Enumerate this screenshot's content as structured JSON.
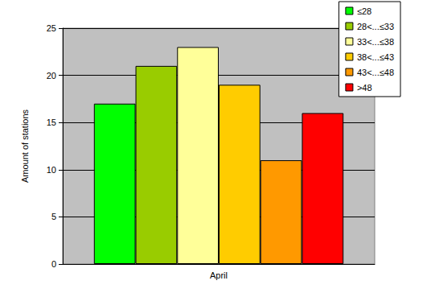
{
  "chart_data": {
    "type": "bar",
    "categories": [
      "April"
    ],
    "y_label": "Amount of stations",
    "series": [
      {
        "name": "≤28",
        "color": "#00ff00",
        "values": [
          17
        ]
      },
      {
        "name": "28<...≤33",
        "color": "#99cc00",
        "values": [
          21
        ]
      },
      {
        "name": "33<...≤38",
        "color": "#ffff99",
        "values": [
          23
        ]
      },
      {
        "name": "38<...≤43",
        "color": "#ffcc00",
        "values": [
          19
        ]
      },
      {
        "name": "43<...≤48",
        "color": "#ff9900",
        "values": [
          11
        ]
      },
      {
        "name": ">48",
        "color": "#ff0000",
        "values": [
          16
        ]
      }
    ],
    "ylim": [
      0,
      25
    ],
    "yticks": [
      0,
      5,
      10,
      15,
      20,
      25
    ],
    "grid": true,
    "legend": "top-right"
  }
}
